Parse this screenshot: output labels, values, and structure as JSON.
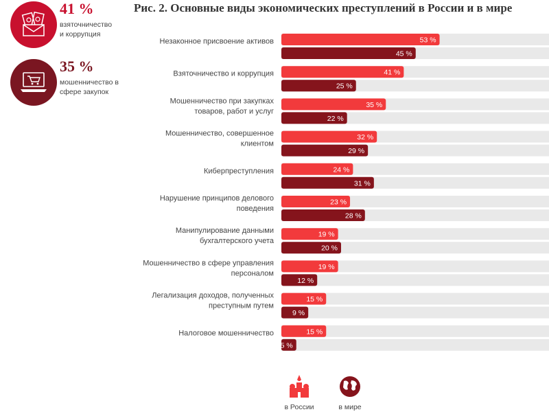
{
  "title": "Рис. 2. Основные виды экономических преступлений в России и в мире",
  "highlights": [
    {
      "value": "41 %",
      "text": "взяточничество и коррупция",
      "icon": "money-envelope-icon",
      "color": "#c8102e"
    },
    {
      "value": "35 %",
      "text": "мошенничество в сфере закупок",
      "icon": "laptop-cart-icon",
      "color": "#7a1621"
    }
  ],
  "legend": {
    "russia": "в России",
    "world": "в мире"
  },
  "colors": {
    "russia": "#f23a3c",
    "world": "#85141c",
    "track": "#e9e9e9"
  },
  "chart_data": {
    "type": "bar",
    "orientation": "horizontal",
    "categories": [
      "Незаконное присвоение активов",
      "Взяточничество и коррупция",
      "Мошенничество при закупках товаров, работ и услуг",
      "Мошенничество, совершенное клиентом",
      "Киберпреступления",
      "Нарушение принципов делового поведения",
      "Манипулирование данными бухгалтерского учета",
      "Мошенничество в сфере управления персоналом",
      "Легализация доходов, полученных преступным путем",
      "Налоговое мошенничество"
    ],
    "category_lines": [
      [
        "Незаконное присвоение активов"
      ],
      [
        "Взяточничество и коррупция"
      ],
      [
        "Мошенничество при закупках",
        "товаров, работ и услуг"
      ],
      [
        "Мошенничество, совершенное",
        "клиентом"
      ],
      [
        "Киберпреступления"
      ],
      [
        "Нарушение принципов делового",
        "поведения"
      ],
      [
        "Манипулирование данными",
        "бухгалтерского учета"
      ],
      [
        "Мошенничество в сфере управления",
        "персоналом"
      ],
      [
        "Легализация доходов, полученных",
        "преступным путем"
      ],
      [
        "Налоговое мошенничество"
      ]
    ],
    "series": [
      {
        "name": "в России",
        "values": [
          53,
          41,
          35,
          32,
          24,
          23,
          19,
          19,
          15,
          15
        ]
      },
      {
        "name": "в мире",
        "values": [
          45,
          25,
          22,
          29,
          31,
          28,
          20,
          12,
          9,
          5
        ]
      }
    ],
    "value_suffix": " %",
    "xlim": [
      0,
      100
    ]
  }
}
